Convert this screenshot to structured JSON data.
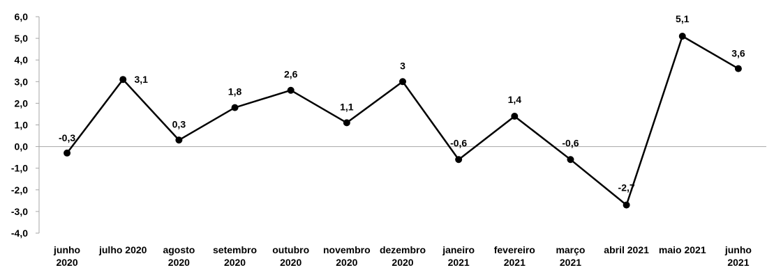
{
  "chart_data": {
    "type": "line",
    "title": "",
    "xlabel": "",
    "ylabel": "",
    "ylim": [
      -4.0,
      6.0
    ],
    "yticks": [
      "6,0",
      "5,0",
      "4,0",
      "3,0",
      "2,0",
      "1,0",
      "0,0",
      "-1,0",
      "-2,0",
      "-3,0",
      "-4,0"
    ],
    "grid": false,
    "categories": [
      [
        "junho",
        "2020"
      ],
      [
        "julho 2020"
      ],
      [
        "agosto",
        "2020"
      ],
      [
        "setembro",
        "2020"
      ],
      [
        "outubro",
        "2020"
      ],
      [
        "novembro",
        "2020"
      ],
      [
        "dezembro",
        "2020"
      ],
      [
        "janeiro",
        "2021"
      ],
      [
        "fevereiro",
        "2021"
      ],
      [
        "março",
        "2021"
      ],
      [
        "abril 2021"
      ],
      [
        "maio 2021"
      ],
      [
        "junho",
        "2021"
      ]
    ],
    "values": [
      -0.3,
      3.1,
      0.3,
      1.8,
      2.6,
      1.1,
      3.0,
      -0.6,
      1.4,
      -0.6,
      -2.7,
      5.1,
      3.6
    ],
    "data_labels": [
      "-0,3",
      "3,1",
      "0,3",
      "1,8",
      "2,6",
      "1,1",
      "3",
      "-0,6",
      "1,4",
      "-0,6",
      "-2,7",
      "5,1",
      "3,6"
    ],
    "line_color": "#000000",
    "axis_color": "#a6a6a6"
  }
}
